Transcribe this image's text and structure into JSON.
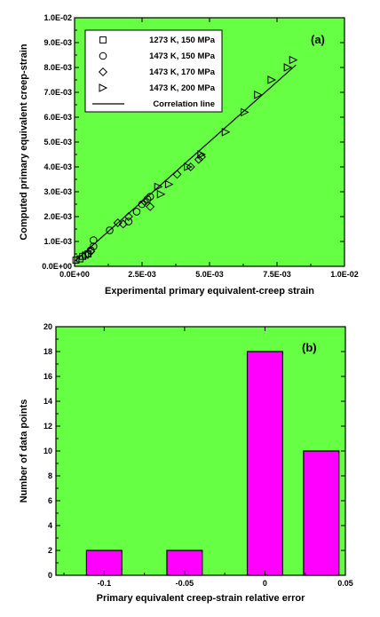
{
  "chart_data": [
    {
      "type": "scatter",
      "panel_label": "(a)",
      "xlabel": "Experimental  primary equivalent-creep strain",
      "ylabel": "Computed primary equivalent creep-strain",
      "xlim": [
        0,
        0.01
      ],
      "ylim": [
        0,
        0.01
      ],
      "x_ticks": [
        "0.0E+00",
        "2.5E-03",
        "5.0E-03",
        "7.5E-03",
        "1.0E-02"
      ],
      "y_ticks": [
        "0.0E+00",
        "1.0E-03",
        "2.0E-03",
        "3.0E-03",
        "4.0E-03",
        "5.0E-03",
        "6.0E-03",
        "7.0E-03",
        "8.0E-03",
        "9.0E-03",
        "1.0E-02"
      ],
      "background_color": "#66ff44",
      "legend_position": "top-left",
      "series": [
        {
          "name": "1273 K, 150 MPa",
          "marker": "square",
          "points": [
            [
              5e-05,
              0.00025
            ],
            [
              0.0002,
              0.0003
            ],
            [
              0.0003,
              0.0004
            ],
            [
              0.0004,
              0.00045
            ],
            [
              0.0005,
              0.0005
            ]
          ]
        },
        {
          "name": "1473 K, 150 MPa",
          "marker": "circle",
          "points": [
            [
              0.0006,
              0.00065
            ],
            [
              0.0007,
              0.0008
            ],
            [
              0.0007,
              0.00105
            ],
            [
              0.0013,
              0.00145
            ],
            [
              0.002,
              0.0018
            ],
            [
              0.0023,
              0.0022
            ],
            [
              0.0025,
              0.0025
            ],
            [
              0.0027,
              0.0027
            ],
            [
              0.0028,
              0.0028
            ]
          ]
        },
        {
          "name": "1473 K, 170 MPa",
          "marker": "diamond",
          "points": [
            [
              0.0005,
              0.0005
            ],
            [
              0.0006,
              0.0006
            ],
            [
              0.0016,
              0.00175
            ],
            [
              0.0018,
              0.0017
            ],
            [
              0.002,
              0.002
            ],
            [
              0.0026,
              0.0026
            ],
            [
              0.0028,
              0.0024
            ],
            [
              0.0038,
              0.0037
            ],
            [
              0.0043,
              0.004
            ],
            [
              0.0046,
              0.0043
            ],
            [
              0.0047,
              0.0044
            ]
          ]
        },
        {
          "name": "1473 K, 200 MPa",
          "marker": "triangle-right",
          "points": [
            [
              0.0031,
              0.0032
            ],
            [
              0.0032,
              0.0029
            ],
            [
              0.0035,
              0.0033
            ],
            [
              0.0042,
              0.004
            ],
            [
              0.0047,
              0.0045
            ],
            [
              0.0056,
              0.0054
            ],
            [
              0.0063,
              0.0062
            ],
            [
              0.0068,
              0.0069
            ],
            [
              0.0073,
              0.0075
            ],
            [
              0.0079,
              0.008
            ],
            [
              0.0081,
              0.0083
            ]
          ]
        }
      ],
      "correlation_line": {
        "name": "Correlation line",
        "points": [
          [
            0,
            0.0002
          ],
          [
            0.0082,
            0.0081
          ]
        ]
      }
    },
    {
      "type": "bar",
      "panel_label": "(b)",
      "xlabel": "Primary equivalent creep-strain relative error",
      "ylabel": "Number of data points",
      "xlim": [
        -0.13,
        0.05
      ],
      "ylim": [
        0,
        20
      ],
      "x_ticks": [
        "-0.1",
        "-0.05",
        "0",
        "0.05"
      ],
      "y_ticks": [
        "0",
        "2",
        "4",
        "6",
        "8",
        "10",
        "12",
        "14",
        "16",
        "18",
        "20"
      ],
      "background_color": "#66ff44",
      "bar_color": "#ff00ff",
      "bar_width": 0.022,
      "categories": [
        -0.1,
        -0.05,
        0,
        0.05
      ],
      "bars": [
        {
          "center": -0.1,
          "value": 2
        },
        {
          "center": -0.05,
          "value": 2
        },
        {
          "center": 0.0,
          "value": 18
        },
        {
          "center": 0.035,
          "value": 10
        }
      ]
    }
  ]
}
